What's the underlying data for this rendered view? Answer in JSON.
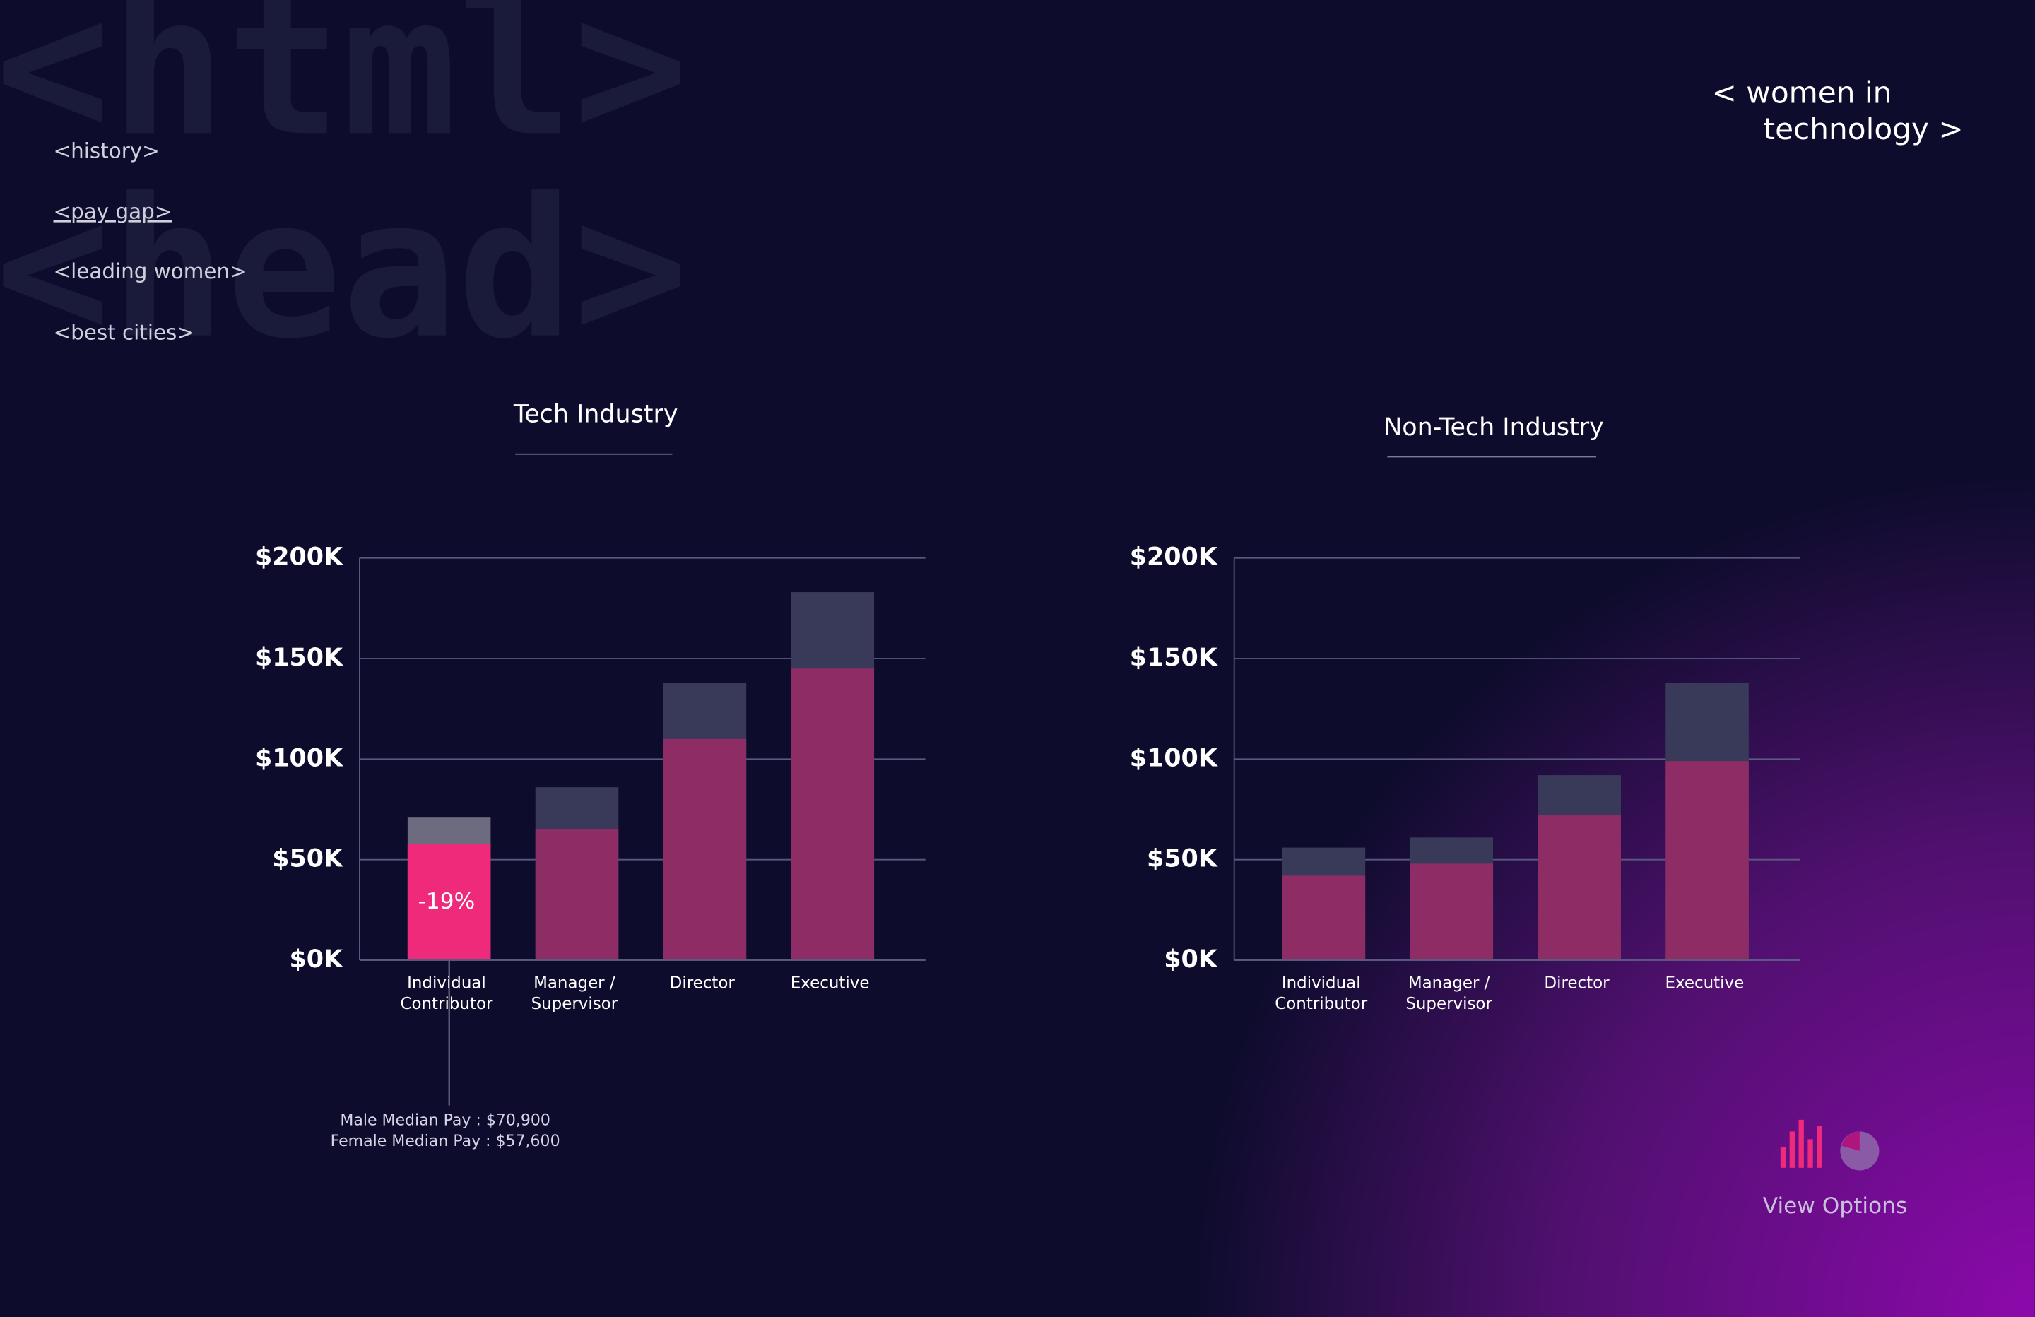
{
  "background_text": [
    "<html>",
    "<head>"
  ],
  "nav": [
    "<history>",
    "<pay gap>",
    "<leading women>",
    "<best cities>"
  ],
  "brand": [
    "< women in",
    "technology >"
  ],
  "view_options": "View Options",
  "chart_data": [
    {
      "type": "bar",
      "title": "Tech Industry",
      "categories": [
        [
          "Individual",
          "Contributor"
        ],
        [
          "Manager /",
          "Supervisor"
        ],
        [
          "Director"
        ],
        [
          "Executive"
        ]
      ],
      "series": [
        {
          "color": "#393a5a",
          "values": [
            70.9,
            86,
            138,
            183
          ]
        },
        {
          "color": "#8e2c66",
          "values": [
            57.6,
            65,
            110,
            145
          ]
        }
      ],
      "highlight": {
        "index": 0,
        "colors": [
          "#6d6b80",
          "#ef2a7b"
        ]
      },
      "annotation": {
        "value": -19,
        "label": "-19%",
        "lines": [
          "Male Median Pay : $70,900",
          "Female Median Pay : $57,600"
        ]
      },
      "ylim": [
        0,
        200
      ],
      "yticks": [
        {
          "value": 0,
          "label": "$0K"
        },
        {
          "value": 50,
          "label": "$50K"
        },
        {
          "value": 100,
          "label": "$100K"
        },
        {
          "value": 150,
          "label": "$150K"
        },
        {
          "value": 200,
          "label": "$200K"
        }
      ],
      "grid": true
    },
    {
      "type": "bar",
      "title": "Non-Tech Industry",
      "categories": [
        [
          "Individual",
          "Contributor"
        ],
        [
          "Manager /",
          "Supervisor"
        ],
        [
          "Director"
        ],
        [
          "Executive"
        ]
      ],
      "series": [
        {
          "color": "#393a5a",
          "values": [
            56,
            61,
            92,
            138
          ]
        },
        {
          "color": "#8e2c66",
          "values": [
            42,
            48,
            72,
            99
          ]
        }
      ],
      "ylim": [
        0,
        200
      ],
      "yticks": [
        {
          "value": 0,
          "label": "$0K"
        },
        {
          "value": 50,
          "label": "$50K"
        },
        {
          "value": 100,
          "label": "$100K"
        },
        {
          "value": 150,
          "label": "$150K"
        },
        {
          "value": 200,
          "label": "$200K"
        }
      ],
      "grid": true
    }
  ]
}
